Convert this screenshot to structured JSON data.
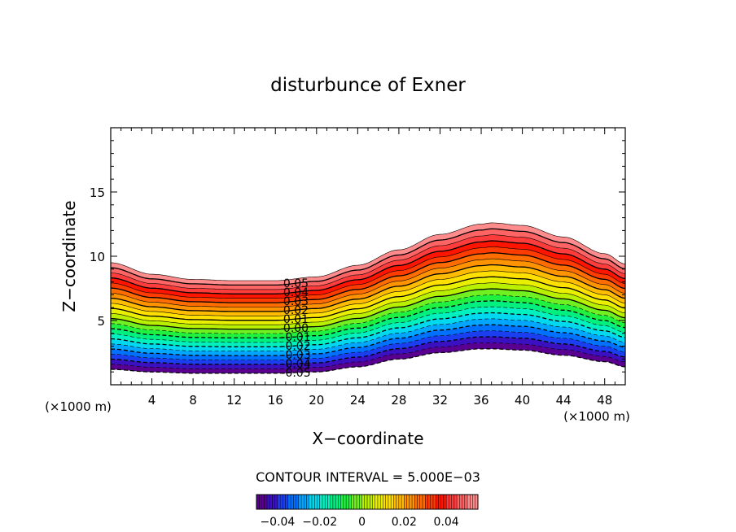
{
  "chart_data": {
    "type": "contour",
    "title": "disturbunce of Exner",
    "xlabel": "X−coordinate",
    "ylabel": "Z−coordinate",
    "x_unit_left": "(×1000 m)",
    "x_unit_right": "(×1000 m)",
    "xlim": [
      0,
      50
    ],
    "ylim": [
      0,
      20
    ],
    "x_ticks": [
      4,
      8,
      12,
      16,
      20,
      24,
      28,
      32,
      36,
      40,
      44,
      48
    ],
    "x_tick_labels": [
      "4",
      "8",
      "12",
      "16",
      "20",
      "24",
      "28",
      "32",
      "36",
      "40",
      "44",
      "48"
    ],
    "y_ticks": [
      5,
      10,
      15
    ],
    "y_tick_labels": [
      "5",
      "10",
      "15"
    ],
    "terrain_top_profile": {
      "x": [
        0,
        4,
        8,
        12,
        16,
        20,
        24,
        28,
        32,
        36,
        37,
        40,
        44,
        48,
        50
      ],
      "z": [
        9.5,
        8.6,
        8.2,
        8.1,
        8.1,
        8.4,
        9.3,
        10.5,
        11.7,
        12.5,
        12.6,
        12.4,
        11.5,
        10.2,
        9.4
      ]
    },
    "terrain_bottom_profile": {
      "x": [
        0,
        4,
        8,
        12,
        16,
        20,
        24,
        28,
        32,
        36,
        37,
        40,
        44,
        48,
        50
      ],
      "z": [
        1.2,
        1.0,
        0.9,
        0.9,
        0.9,
        1.0,
        1.4,
        2.0,
        2.5,
        2.8,
        2.8,
        2.7,
        2.3,
        1.8,
        1.4
      ]
    },
    "contour_levels": [
      -0.05,
      -0.045,
      -0.04,
      -0.035,
      -0.03,
      -0.025,
      -0.02,
      -0.015,
      -0.01,
      -0.005,
      0,
      0.005,
      0.01,
      0.015,
      0.02,
      0.025,
      0.03,
      0.035,
      0.04,
      0.045,
      0.05,
      0.055
    ],
    "contour_labels": [
      "0.05",
      "0.04",
      "0.03",
      "0.02",
      "0.01",
      "0.00",
      "-0.01",
      "-0.02",
      "-0.03",
      "-0.04",
      "-0.05"
    ],
    "contour_label_x": 18,
    "negative_contours_style": "dashed",
    "colormap": [
      "#5a0090",
      "#3a10c0",
      "#1a3ef0",
      "#0070ff",
      "#00a6ff",
      "#00d8f0",
      "#00f0c0",
      "#00f080",
      "#20f040",
      "#70f020",
      "#b8f000",
      "#e8f000",
      "#ffe000",
      "#ffbc00",
      "#ff9400",
      "#ff6c00",
      "#ff3c00",
      "#ff1400",
      "#ff3c3c",
      "#ff6464",
      "#ff8c8c"
    ],
    "contour_interval_text": "CONTOUR INTERVAL = 5.000E−03",
    "colorbar": {
      "range": [
        -0.05,
        0.055
      ],
      "tick_values": [
        -0.04,
        -0.02,
        0,
        0.02,
        0.04
      ],
      "tick_labels": [
        "−0.04",
        "−0.02",
        "0",
        "0.02",
        "0.04"
      ]
    }
  }
}
